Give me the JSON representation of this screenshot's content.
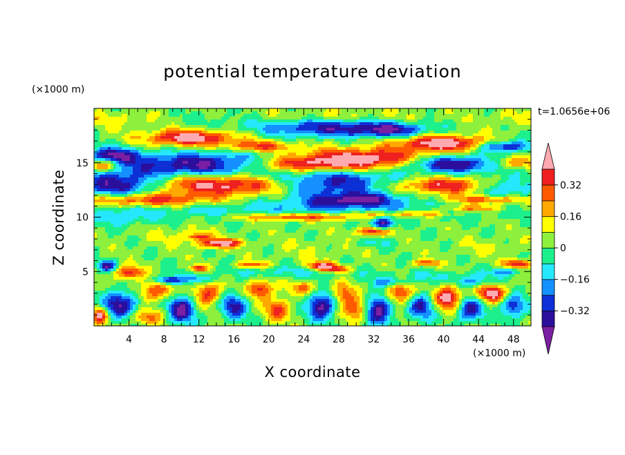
{
  "chart_data": {
    "type": "heatmap",
    "title": "potential temperature deviation",
    "xlabel": "X coordinate",
    "ylabel": "Z coordinate",
    "x_unit": "(×1000 m)",
    "y_unit": "(×1000 m)",
    "time_label": "t=1.0656e+06",
    "xlim": [
      0,
      50
    ],
    "ylim": [
      0,
      20
    ],
    "x_ticks": [
      4,
      8,
      12,
      16,
      20,
      24,
      28,
      32,
      36,
      40,
      44,
      48
    ],
    "y_ticks": [
      5,
      10,
      15
    ],
    "colorbar": {
      "levels": [
        -0.4,
        -0.32,
        -0.24,
        -0.16,
        -0.08,
        0,
        0.08,
        0.16,
        0.24,
        0.32,
        0.4
      ],
      "labeled_levels": [
        0.32,
        0.16,
        0,
        -0.16,
        -0.32
      ],
      "labels": [
        "0.32",
        "0.16",
        "0",
        "−0.16",
        "−0.32"
      ],
      "colors": [
        "#7a1fa2",
        "#2b0f9c",
        "#0d2fd6",
        "#1490ff",
        "#25e8ff",
        "#1cf08c",
        "#8cf03c",
        "#ffff00",
        "#ffa800",
        "#ff5a00",
        "#ee2020",
        "#ffaab0"
      ],
      "extend": "both"
    },
    "grid": false,
    "legend": "right"
  },
  "colors": {
    "background": "#ffffff",
    "frame": "#000000"
  }
}
